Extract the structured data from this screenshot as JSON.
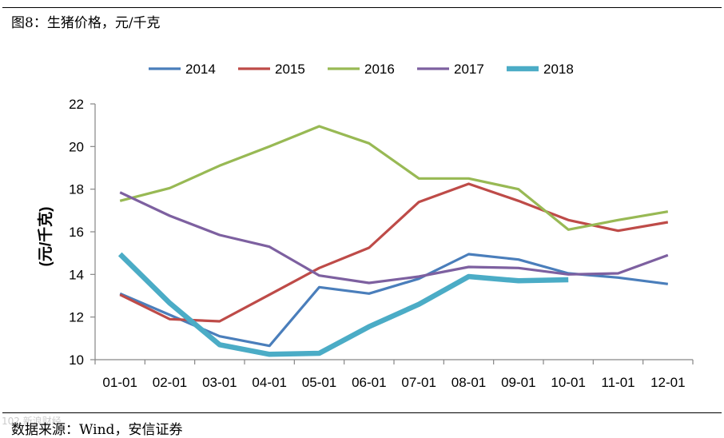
{
  "header": {
    "caption": "图8：生猪价格，元/千克"
  },
  "footer": {
    "source": "数据来源：Wind，安信证券",
    "watermark": "102.新浪财经"
  },
  "chart_data": {
    "type": "line",
    "title": "图8：生猪价格，元/千克",
    "xlabel": "",
    "ylabel": "(元/千克)",
    "categories": [
      "01-01",
      "02-01",
      "03-01",
      "04-01",
      "05-01",
      "06-01",
      "07-01",
      "08-01",
      "09-01",
      "10-01",
      "11-01",
      "12-01"
    ],
    "ylim": [
      10,
      22
    ],
    "yticks": [
      10,
      12,
      14,
      16,
      18,
      20,
      22
    ],
    "legend_position": "top",
    "series": [
      {
        "name": "2014",
        "color": "#4a7ebb",
        "width": "normal",
        "values": [
          13.1,
          12.1,
          11.1,
          10.65,
          13.4,
          13.1,
          13.8,
          14.95,
          14.7,
          14.05,
          13.85,
          13.55
        ]
      },
      {
        "name": "2015",
        "color": "#be4b48",
        "width": "normal",
        "values": [
          13.05,
          11.9,
          11.8,
          13.05,
          14.3,
          15.25,
          17.4,
          18.25,
          17.45,
          16.55,
          16.05,
          16.45
        ]
      },
      {
        "name": "2016",
        "color": "#98b954",
        "width": "normal",
        "values": [
          17.45,
          18.05,
          19.1,
          20.0,
          20.95,
          20.15,
          18.5,
          18.5,
          18.0,
          16.1,
          16.55,
          16.95
        ]
      },
      {
        "name": "2017",
        "color": "#7d60a0",
        "width": "normal",
        "values": [
          17.85,
          16.75,
          15.85,
          15.3,
          13.95,
          13.6,
          13.9,
          14.35,
          14.3,
          14.0,
          14.05,
          14.9
        ]
      },
      {
        "name": "2018",
        "color": "#4bacc6",
        "width": "thick",
        "values": [
          14.95,
          12.65,
          10.7,
          10.25,
          10.3,
          11.55,
          12.6,
          13.9,
          13.7,
          13.75,
          null,
          null
        ]
      }
    ]
  }
}
